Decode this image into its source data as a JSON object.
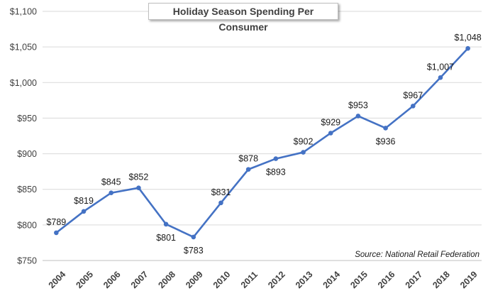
{
  "chart_data": {
    "type": "line",
    "title": "Holiday Season Spending Per Consumer",
    "xlabel": "",
    "ylabel": "",
    "x": [
      "2004",
      "2005",
      "2006",
      "2007",
      "2008",
      "2009",
      "2010",
      "2011",
      "2012",
      "2013",
      "2014",
      "2015",
      "2016",
      "2017",
      "2018",
      "2019"
    ],
    "series": [
      {
        "values": [
          789,
          819,
          845,
          852,
          801,
          783,
          831,
          878,
          893,
          902,
          929,
          953,
          936,
          967,
          1007,
          1048
        ],
        "labels": [
          "$789",
          "$819",
          "$845",
          "$852",
          "$801",
          "$783",
          "$831",
          "$878",
          "$893",
          "$902",
          "$929",
          "$953",
          "$936",
          "$967",
          "$1,007",
          "$1,048"
        ],
        "color": "#4472C4"
      }
    ],
    "ylim": [
      750,
      1100
    ],
    "yticks": [
      750,
      800,
      850,
      900,
      950,
      1000,
      1050,
      1100
    ],
    "ytick_labels": [
      "$750",
      "$800",
      "$850",
      "$900",
      "$950",
      "$1,000",
      "$1,050",
      "$1,100"
    ],
    "grid": true,
    "annotation": "Source: National Retail Federation"
  }
}
